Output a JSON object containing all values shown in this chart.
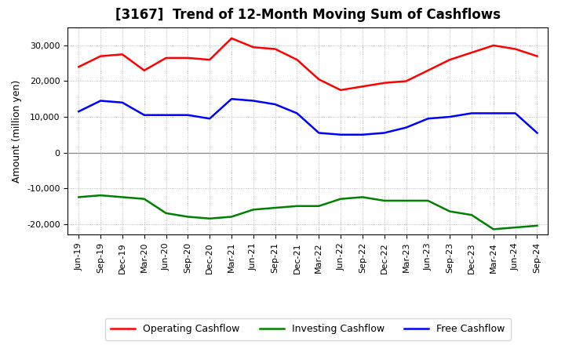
{
  "title": "[3167]  Trend of 12-Month Moving Sum of Cashflows",
  "ylabel": "Amount (million yen)",
  "x_labels": [
    "Jun-19",
    "Sep-19",
    "Dec-19",
    "Mar-20",
    "Jun-20",
    "Sep-20",
    "Dec-20",
    "Mar-21",
    "Jun-21",
    "Sep-21",
    "Dec-21",
    "Mar-22",
    "Jun-22",
    "Sep-22",
    "Dec-22",
    "Mar-23",
    "Jun-23",
    "Sep-23",
    "Dec-23",
    "Mar-24",
    "Jun-24",
    "Sep-24"
  ],
  "operating": [
    24000,
    27000,
    27500,
    23000,
    26500,
    26500,
    26000,
    32000,
    29500,
    29000,
    26000,
    20500,
    17500,
    18500,
    19500,
    20000,
    23000,
    26000,
    28000,
    30000,
    29000,
    27000
  ],
  "investing": [
    -12500,
    -12000,
    -12500,
    -13000,
    -17000,
    -18000,
    -18500,
    -18000,
    -16000,
    -15500,
    -15000,
    -15000,
    -13000,
    -12500,
    -13500,
    -13500,
    -13500,
    -16500,
    -17500,
    -21500,
    -21000,
    -20500
  ],
  "free": [
    11500,
    14500,
    14000,
    10500,
    10500,
    10500,
    9500,
    15000,
    14500,
    13500,
    11000,
    5500,
    5000,
    5000,
    5500,
    7000,
    9500,
    10000,
    11000,
    11000,
    11000,
    5500
  ],
  "operating_color": "#ff0000",
  "investing_color": "#008000",
  "free_color": "#0000ff",
  "bg_color": "#ffffff",
  "plot_bg_color": "#ffffff",
  "ylim": [
    -23000,
    35000
  ],
  "yticks": [
    -20000,
    -10000,
    0,
    10000,
    20000,
    30000
  ],
  "legend_labels": [
    "Operating Cashflow",
    "Investing Cashflow",
    "Free Cashflow"
  ],
  "title_fontsize": 12,
  "axis_fontsize": 9,
  "tick_fontsize": 8,
  "line_width": 1.8
}
